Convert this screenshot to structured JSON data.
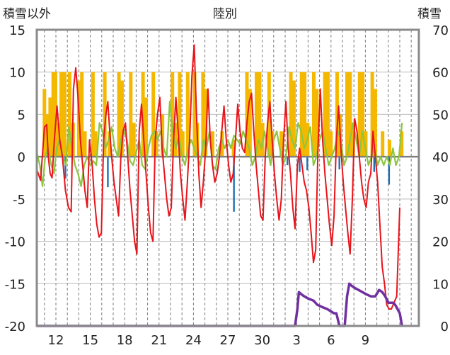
{
  "chart_data": {
    "type": "line",
    "title": "陸別",
    "ylabel_left": "積雪以外",
    "ylabel_right": "積雪",
    "ylim_left": [
      -20,
      15
    ],
    "ylim_right": [
      0,
      70
    ],
    "yticks_left": [
      "15",
      "10",
      "5",
      "0",
      "-5",
      "-10",
      "-15",
      "-20"
    ],
    "yticks_right": [
      "70",
      "60",
      "50",
      "40",
      "30",
      "20",
      "10",
      "0"
    ],
    "xlim": [
      0,
      100
    ],
    "xtick_labels": [
      {
        "x": 5,
        "label": "12"
      },
      {
        "x": 14,
        "label": "15"
      },
      {
        "x": 23,
        "label": "18"
      },
      {
        "x": 32,
        "label": "21"
      },
      {
        "x": 41,
        "label": "24"
      },
      {
        "x": 50,
        "label": "27"
      },
      {
        "x": 59,
        "label": "30"
      },
      {
        "x": 68,
        "label": "3"
      },
      {
        "x": 77,
        "label": "6"
      },
      {
        "x": 86,
        "label": "9"
      }
    ],
    "grid_x": [
      2,
      5,
      8,
      11,
      14,
      17,
      20,
      23,
      26,
      29,
      32,
      35,
      38,
      41,
      44,
      47,
      50,
      53,
      56,
      59,
      62,
      65,
      68,
      71,
      74,
      77,
      80,
      83,
      86,
      89,
      92,
      95,
      98
    ],
    "grid_y": [
      -15,
      -10,
      -5,
      0,
      5,
      10
    ],
    "colors": {
      "temperature": "#e8141b",
      "precip_bar": "#f5b800",
      "wind": "#8cc63f",
      "pressure_bar": "#1f6fb5",
      "snow_depth": "#7030a0",
      "zero_line": "#7f7f7f",
      "frame": "#8a8a8a"
    },
    "precip_bars": [
      [
        2.0,
        8
      ],
      [
        2.6,
        5
      ],
      [
        3.5,
        7
      ],
      [
        4.3,
        10
      ],
      [
        4.9,
        10
      ],
      [
        5.6,
        4
      ],
      [
        6.4,
        10
      ],
      [
        7.3,
        10
      ],
      [
        8.6,
        10
      ],
      [
        9.5,
        4
      ],
      [
        11.0,
        9
      ],
      [
        11.8,
        10
      ],
      [
        12.6,
        3
      ],
      [
        14.7,
        10
      ],
      [
        15.4,
        3
      ],
      [
        17.8,
        10
      ],
      [
        19.0,
        3
      ],
      [
        21.5,
        10
      ],
      [
        22.3,
        9
      ],
      [
        24.6,
        10
      ],
      [
        25.4,
        4
      ],
      [
        27.8,
        10
      ],
      [
        28.6,
        7
      ],
      [
        30.5,
        10
      ],
      [
        31.3,
        3
      ],
      [
        32.9,
        5
      ],
      [
        35.5,
        10
      ],
      [
        36.3,
        4
      ],
      [
        37.4,
        10
      ],
      [
        38.2,
        3
      ],
      [
        39.5,
        10
      ],
      [
        41.3,
        10
      ],
      [
        42.0,
        4
      ],
      [
        43.5,
        10
      ],
      [
        44.2,
        8
      ],
      [
        46.0,
        3
      ],
      [
        48.5,
        3
      ],
      [
        51.5,
        2
      ],
      [
        55.0,
        10
      ],
      [
        55.8,
        8
      ],
      [
        57.5,
        10
      ],
      [
        58.3,
        10
      ],
      [
        59.1,
        4
      ],
      [
        60.8,
        10
      ],
      [
        61.6,
        3
      ],
      [
        64.0,
        3
      ],
      [
        66.5,
        10
      ],
      [
        67.3,
        9
      ],
      [
        69.3,
        10
      ],
      [
        70.1,
        10
      ],
      [
        70.9,
        4
      ],
      [
        72.5,
        10
      ],
      [
        73.3,
        8
      ],
      [
        75.4,
        10
      ],
      [
        76.2,
        10
      ],
      [
        77.0,
        3
      ],
      [
        78.6,
        10
      ],
      [
        79.4,
        5
      ],
      [
        81.2,
        10
      ],
      [
        82.0,
        10
      ],
      [
        82.8,
        4
      ],
      [
        84.5,
        10
      ],
      [
        85.3,
        10
      ],
      [
        86.1,
        3
      ],
      [
        87.8,
        10
      ],
      [
        88.6,
        8
      ],
      [
        90.5,
        3
      ],
      [
        92.3,
        2
      ],
      [
        95.5,
        3
      ]
    ],
    "pressure_bars": [
      [
        7.5,
        -2.6
      ],
      [
        18.6,
        -3.6
      ],
      [
        51.6,
        -6.5
      ],
      [
        65.6,
        -1.0
      ],
      [
        68.8,
        -1.8
      ],
      [
        70.8,
        -1.6
      ],
      [
        79.2,
        -1.5
      ],
      [
        88.3,
        -1.8
      ],
      [
        92.2,
        -3.3
      ]
    ],
    "temperature": [
      [
        0,
        -1.5
      ],
      [
        1,
        -2.8
      ],
      [
        2,
        3.5
      ],
      [
        2.6,
        3.8
      ],
      [
        3,
        0
      ],
      [
        3.5,
        -2
      ],
      [
        4,
        -2.5
      ],
      [
        4.6,
        2
      ],
      [
        5.3,
        6
      ],
      [
        6,
        2
      ],
      [
        6.7,
        0
      ],
      [
        7.5,
        -4
      ],
      [
        8.3,
        -6
      ],
      [
        9,
        -6.5
      ],
      [
        9.6,
        8
      ],
      [
        10.2,
        10.5
      ],
      [
        10.8,
        7
      ],
      [
        11.4,
        2
      ],
      [
        12,
        -1
      ],
      [
        12.6,
        -4
      ],
      [
        13.2,
        -6
      ],
      [
        13.8,
        2
      ],
      [
        14.5,
        -1
      ],
      [
        15.1,
        -5
      ],
      [
        15.7,
        -8
      ],
      [
        16.3,
        -9.5
      ],
      [
        16.9,
        -9
      ],
      [
        17.5,
        2
      ],
      [
        18.1,
        5
      ],
      [
        18.6,
        6.5
      ],
      [
        19.1,
        3
      ],
      [
        19.6,
        0
      ],
      [
        20.2,
        -3
      ],
      [
        20.8,
        -5
      ],
      [
        21.4,
        -7
      ],
      [
        22.0,
        0
      ],
      [
        22.6,
        3
      ],
      [
        23.2,
        4
      ],
      [
        23.8,
        0
      ],
      [
        24.4,
        -4
      ],
      [
        25,
        -7
      ],
      [
        25.6,
        -10
      ],
      [
        26.2,
        -11.5
      ],
      [
        26.8,
        3
      ],
      [
        27.4,
        6.2
      ],
      [
        28,
        2
      ],
      [
        28.6,
        -2
      ],
      [
        29.2,
        -6
      ],
      [
        29.8,
        -9
      ],
      [
        30.4,
        -10
      ],
      [
        31,
        2
      ],
      [
        31.6,
        5
      ],
      [
        32.2,
        7
      ],
      [
        32.8,
        1
      ],
      [
        33.4,
        -2
      ],
      [
        34,
        -5
      ],
      [
        34.6,
        -7
      ],
      [
        35.2,
        -6
      ],
      [
        35.8,
        2
      ],
      [
        36.4,
        7
      ],
      [
        37,
        3
      ],
      [
        37.6,
        -2
      ],
      [
        38.2,
        -5
      ],
      [
        38.8,
        -7.5
      ],
      [
        39.4,
        -3
      ],
      [
        40,
        2
      ],
      [
        40.6,
        9.5
      ],
      [
        41.2,
        13.2
      ],
      [
        41.8,
        5
      ],
      [
        42.4,
        -2
      ],
      [
        43,
        -6
      ],
      [
        43.6,
        -3
      ],
      [
        44.2,
        1
      ],
      [
        44.8,
        8
      ],
      [
        45.4,
        2
      ],
      [
        46,
        -1
      ],
      [
        46.6,
        -3
      ],
      [
        47.2,
        -2
      ],
      [
        47.8,
        0
      ],
      [
        48.4,
        3
      ],
      [
        49,
        6
      ],
      [
        49.6,
        2
      ],
      [
        50.2,
        -1
      ],
      [
        50.8,
        -3
      ],
      [
        51.4,
        -2
      ],
      [
        52,
        2
      ],
      [
        52.6,
        6.2
      ],
      [
        53.2,
        3
      ],
      [
        53.8,
        1
      ],
      [
        54.4,
        0.5
      ],
      [
        55,
        4
      ],
      [
        55.6,
        6.5
      ],
      [
        56.2,
        7.5
      ],
      [
        56.8,
        3
      ],
      [
        57.4,
        -1
      ],
      [
        58,
        -4
      ],
      [
        58.6,
        -7
      ],
      [
        59.2,
        -7.5
      ],
      [
        59.8,
        0
      ],
      [
        60.4,
        4
      ],
      [
        61,
        6.5
      ],
      [
        61.6,
        2
      ],
      [
        62.2,
        -2
      ],
      [
        62.8,
        -5
      ],
      [
        63.4,
        -7.5
      ],
      [
        64,
        -5
      ],
      [
        64.6,
        2
      ],
      [
        65.2,
        6.5
      ],
      [
        65.8,
        1
      ],
      [
        66.4,
        -2
      ],
      [
        67,
        -6
      ],
      [
        67.6,
        -8.5
      ],
      [
        68.2,
        -1
      ],
      [
        68.8,
        1
      ],
      [
        69.4,
        -1
      ],
      [
        70,
        -3
      ],
      [
        70.6,
        -4
      ],
      [
        71.2,
        -6
      ],
      [
        71.8,
        -9
      ],
      [
        72.4,
        -12.5
      ],
      [
        73.0,
        -11
      ],
      [
        73.6,
        1
      ],
      [
        74.2,
        8
      ],
      [
        74.8,
        2
      ],
      [
        75.4,
        -2
      ],
      [
        76,
        -5
      ],
      [
        76.6,
        -8
      ],
      [
        77.2,
        -10.5
      ],
      [
        77.8,
        -7
      ],
      [
        78.4,
        2
      ],
      [
        79,
        6
      ],
      [
        79.6,
        1
      ],
      [
        80.2,
        -3
      ],
      [
        80.8,
        -6
      ],
      [
        81.4,
        -9
      ],
      [
        82,
        -11.5
      ],
      [
        82.6,
        -5
      ],
      [
        83.2,
        4.5
      ],
      [
        83.8,
        3
      ],
      [
        84.4,
        0
      ],
      [
        85,
        -3
      ],
      [
        85.6,
        -5
      ],
      [
        86.2,
        -6
      ],
      [
        86.8,
        -3
      ],
      [
        87.4,
        -2
      ],
      [
        88,
        3
      ],
      [
        88.6,
        0
      ],
      [
        89.2,
        -3
      ],
      [
        89.8,
        -8
      ],
      [
        90.4,
        -13
      ],
      [
        91,
        -15
      ],
      [
        91.6,
        -17.5
      ],
      [
        92.2,
        -18
      ],
      [
        92.8,
        -18
      ],
      [
        94.2,
        -16.5
      ],
      [
        95,
        -6
      ]
    ],
    "wind": [
      [
        0,
        0.5
      ],
      [
        0.8,
        -1
      ],
      [
        1.5,
        -3.5
      ],
      [
        2.2,
        0
      ],
      [
        3,
        1
      ],
      [
        3.8,
        -1
      ],
      [
        4.5,
        -2
      ],
      [
        5.2,
        1
      ],
      [
        6,
        2
      ],
      [
        6.8,
        0
      ],
      [
        7.6,
        -1
      ],
      [
        8.4,
        3.5
      ],
      [
        9.2,
        1
      ],
      [
        10,
        -1
      ],
      [
        10.8,
        -2
      ],
      [
        11.6,
        -3.5
      ],
      [
        12.4,
        -1
      ],
      [
        13.2,
        0
      ],
      [
        14,
        -1
      ],
      [
        14.8,
        -0.5
      ],
      [
        15.6,
        -1
      ],
      [
        16.4,
        4
      ],
      [
        17.2,
        3
      ],
      [
        18,
        1
      ],
      [
        18.8,
        2
      ],
      [
        19.6,
        3.5
      ],
      [
        20.4,
        1
      ],
      [
        21.2,
        0
      ],
      [
        22,
        2
      ],
      [
        22.8,
        3
      ],
      [
        23.6,
        2
      ],
      [
        24.4,
        -0.5
      ],
      [
        25.2,
        -1
      ],
      [
        26,
        0.5
      ],
      [
        26.8,
        2
      ],
      [
        27.6,
        -1
      ],
      [
        28.4,
        -1.5
      ],
      [
        29.2,
        1
      ],
      [
        30,
        2.5
      ],
      [
        30.8,
        3
      ],
      [
        31.6,
        2
      ],
      [
        32.4,
        3
      ],
      [
        33.2,
        1
      ],
      [
        34,
        0
      ],
      [
        34.8,
        6.5
      ],
      [
        35.6,
        3
      ],
      [
        36.4,
        1
      ],
      [
        37.2,
        2.5
      ],
      [
        38,
        0
      ],
      [
        38.8,
        -1
      ],
      [
        39.6,
        1
      ],
      [
        40.4,
        2
      ],
      [
        41.2,
        1
      ],
      [
        42,
        0
      ],
      [
        42.8,
        -1
      ],
      [
        43.6,
        2
      ],
      [
        44.4,
        1
      ],
      [
        45.2,
        3
      ],
      [
        46,
        -1
      ],
      [
        46.8,
        -1.5
      ],
      [
        47.6,
        1
      ],
      [
        48.4,
        2
      ],
      [
        49.2,
        1
      ],
      [
        50,
        2
      ],
      [
        50.8,
        1
      ],
      [
        51.6,
        2.5
      ],
      [
        52.4,
        2
      ],
      [
        53.2,
        1.5
      ],
      [
        54,
        3
      ],
      [
        54.8,
        2
      ],
      [
        55.6,
        1
      ],
      [
        56.4,
        -1
      ],
      [
        57.2,
        0
      ],
      [
        58,
        2
      ],
      [
        58.8,
        1
      ],
      [
        59.6,
        3
      ],
      [
        60.4,
        1
      ],
      [
        61.2,
        -1
      ],
      [
        62,
        2
      ],
      [
        62.8,
        3
      ],
      [
        63.6,
        1
      ],
      [
        64.4,
        -1
      ],
      [
        65.2,
        0
      ],
      [
        66,
        3.5
      ],
      [
        66.8,
        2
      ],
      [
        67.6,
        1
      ],
      [
        68.4,
        4
      ],
      [
        69.2,
        3
      ],
      [
        70,
        1
      ],
      [
        70.8,
        2
      ],
      [
        71.6,
        3.5
      ],
      [
        72.4,
        -1
      ],
      [
        73.2,
        0
      ],
      [
        74,
        2
      ],
      [
        74.8,
        3
      ],
      [
        75.6,
        1
      ],
      [
        76.4,
        -1
      ],
      [
        77.2,
        0
      ],
      [
        78,
        1
      ],
      [
        78.8,
        3
      ],
      [
        79.6,
        2
      ],
      [
        80.4,
        -1
      ],
      [
        81.2,
        0
      ],
      [
        82,
        2
      ],
      [
        82.8,
        4
      ],
      [
        83.6,
        2
      ],
      [
        84.4,
        0
      ],
      [
        85.2,
        3
      ],
      [
        86,
        1
      ],
      [
        86.8,
        -1
      ],
      [
        87.6,
        0
      ],
      [
        88.4,
        1
      ],
      [
        89.2,
        -1
      ],
      [
        90,
        0
      ],
      [
        90.8,
        -1
      ],
      [
        91.6,
        0
      ],
      [
        92.4,
        -1
      ],
      [
        93.2,
        1
      ],
      [
        94,
        -1
      ],
      [
        94.8,
        0
      ],
      [
        95.6,
        4
      ]
    ],
    "snow_depth": [
      [
        0,
        0
      ],
      [
        67.6,
        0
      ],
      [
        68.2,
        4
      ],
      [
        68.6,
        8
      ],
      [
        69.2,
        7.5
      ],
      [
        70,
        7
      ],
      [
        71,
        6.5
      ],
      [
        72.4,
        6
      ],
      [
        73.4,
        5
      ],
      [
        74.6,
        4.5
      ],
      [
        76,
        4
      ],
      [
        77.8,
        3
      ],
      [
        78.4,
        3
      ],
      [
        79.2,
        0
      ],
      [
        80,
        0
      ],
      [
        80.6,
        0
      ],
      [
        81.2,
        7
      ],
      [
        81.8,
        10
      ],
      [
        82.4,
        9.5
      ],
      [
        83.2,
        9
      ],
      [
        84.2,
        8.5
      ],
      [
        85.2,
        8
      ],
      [
        86.2,
        7.5
      ],
      [
        87.4,
        7
      ],
      [
        88.6,
        7
      ],
      [
        89.6,
        8.5
      ],
      [
        90.4,
        8
      ],
      [
        91.2,
        7
      ],
      [
        92,
        5.5
      ],
      [
        93.2,
        5.5
      ],
      [
        93.8,
        5
      ],
      [
        94.4,
        4
      ],
      [
        95,
        3
      ],
      [
        95.6,
        0
      ]
    ]
  }
}
